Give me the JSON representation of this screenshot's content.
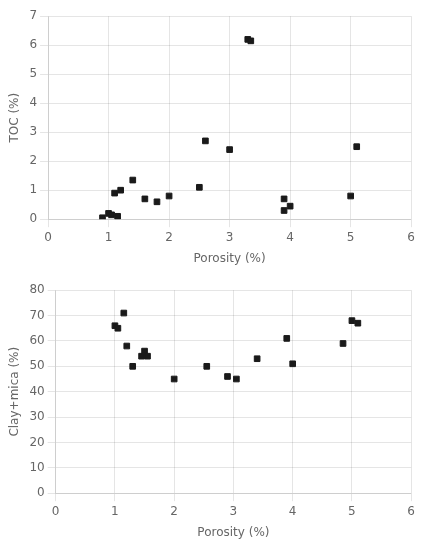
{
  "chart_data": [
    {
      "type": "scatter",
      "x": [
        0.9,
        1.0,
        1.05,
        1.1,
        1.15,
        1.2,
        1.4,
        1.6,
        1.8,
        2.0,
        2.5,
        2.6,
        3.0,
        3.3,
        3.35,
        3.9,
        3.9,
        4.0,
        5.0,
        5.1
      ],
      "values": [
        0.05,
        0.2,
        0.15,
        0.9,
        0.1,
        1.0,
        1.35,
        0.7,
        0.6,
        0.8,
        1.1,
        2.7,
        2.4,
        6.2,
        6.15,
        0.7,
        0.3,
        0.45,
        0.8,
        2.5
      ],
      "color": "#1a1a1a",
      "marker": "square",
      "xlabel": "Porosity (%)",
      "ylabel": "TOC (%)",
      "xlim": [
        0,
        6
      ],
      "xticks": [
        0,
        1,
        2,
        3,
        4,
        5,
        6
      ],
      "ylim": [
        0,
        7
      ],
      "yticks": [
        0,
        1,
        2,
        3,
        4,
        5,
        6,
        7
      ],
      "grid": true
    },
    {
      "type": "scatter",
      "x": [
        1.0,
        1.05,
        1.15,
        1.2,
        1.3,
        1.45,
        1.5,
        1.55,
        2.0,
        2.55,
        2.9,
        3.05,
        3.4,
        3.9,
        4.0,
        4.85,
        5.0,
        5.1
      ],
      "values": [
        66,
        65,
        71,
        58,
        50,
        54,
        56,
        54,
        45,
        50,
        46,
        45,
        53,
        61,
        51,
        59,
        68,
        67
      ],
      "color": "#1a1a1a",
      "marker": "square",
      "xlabel": "Porosity (%)",
      "ylabel": "Clay+mica (%)",
      "xlim": [
        0,
        6
      ],
      "xticks": [
        0,
        1,
        2,
        3,
        4,
        5,
        6
      ],
      "ylim": [
        0,
        80
      ],
      "yticks": [
        0,
        10,
        20,
        30,
        40,
        50,
        60,
        70,
        80
      ],
      "grid": true
    }
  ]
}
